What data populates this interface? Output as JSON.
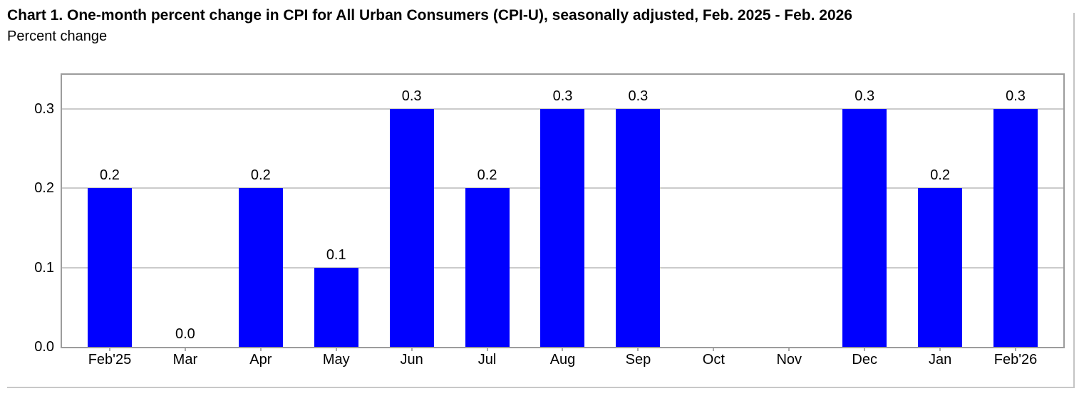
{
  "chart_data": {
    "type": "bar",
    "title": "Chart 1. One-month percent change in CPI for All Urban Consumers (CPI-U), seasonally adjusted, Feb. 2025 - Feb. 2026",
    "ylabel": "Percent change",
    "xlabel": "",
    "categories": [
      "Feb'25",
      "Mar",
      "Apr",
      "May",
      "Jun",
      "Jul",
      "Aug",
      "Sep",
      "Oct",
      "Nov",
      "Dec",
      "Jan",
      "Feb'26"
    ],
    "values": [
      0.2,
      0.0,
      0.2,
      0.1,
      0.3,
      0.2,
      0.3,
      0.3,
      null,
      null,
      0.3,
      0.2,
      0.3
    ],
    "bar_labels": [
      "0.2",
      "0.0",
      "0.2",
      "0.1",
      "0.3",
      "0.2",
      "0.3",
      "0.3",
      "",
      "",
      "0.3",
      "0.2",
      "0.3"
    ],
    "y_ticks": [
      0,
      0.1,
      0.2,
      0.3
    ],
    "y_tick_labels": [
      "0.0",
      "0.1",
      "0.2",
      "0.3"
    ],
    "ylim": [
      0,
      0.345
    ],
    "grid": true,
    "legend_position": "none",
    "bar_color": "#0000ff"
  },
  "colors": {
    "bar": "#0000ff",
    "plot_frame": "#9c9c9c",
    "gridline": "#cbcbcb",
    "separator": "#c8c8c8",
    "text": "#000000",
    "background": "#ffffff"
  }
}
